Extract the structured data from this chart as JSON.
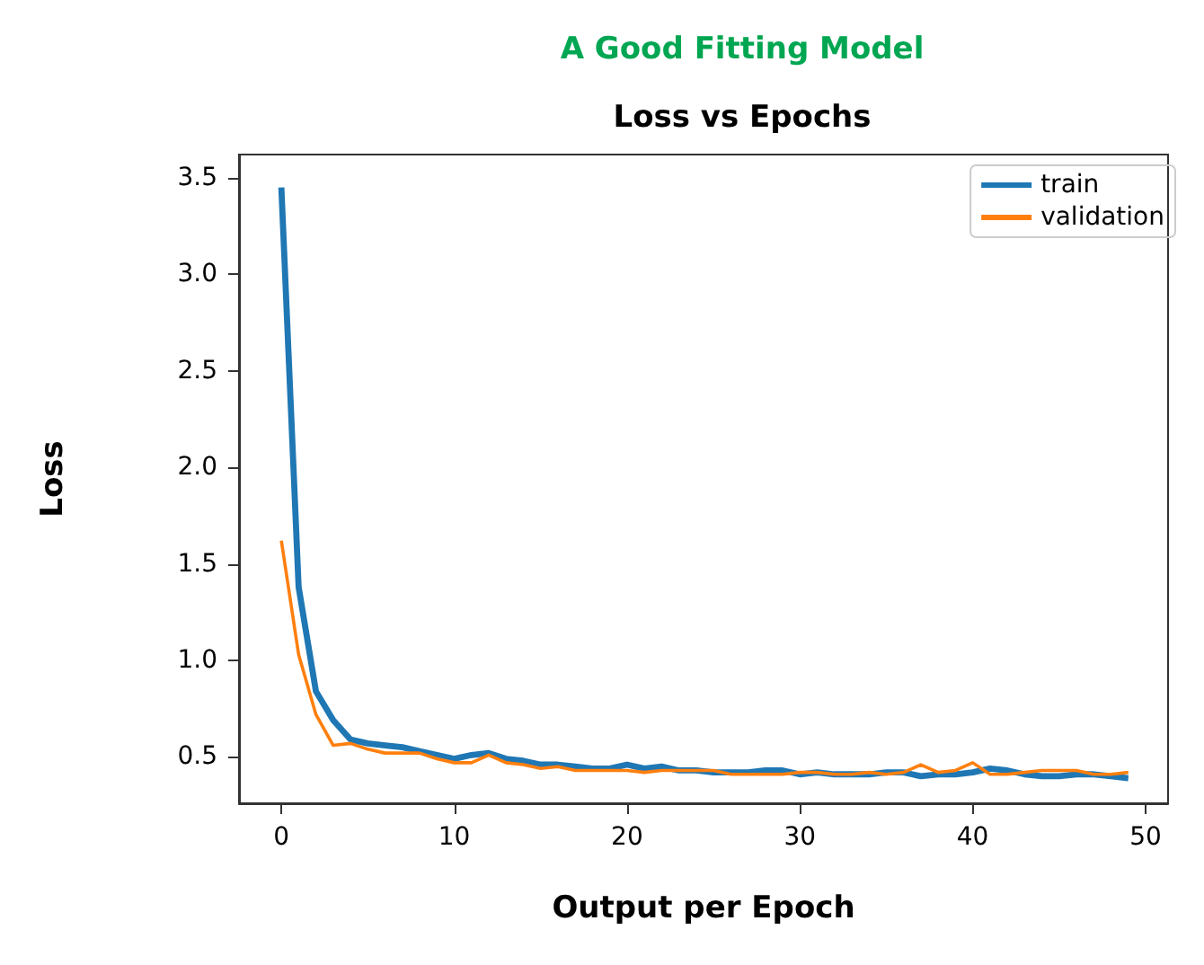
{
  "chart_data": {
    "type": "line",
    "title": "A Good Fitting Model",
    "subtitle": "Loss vs Epochs",
    "xlabel": "Output per Epoch",
    "ylabel": "Loss",
    "x": [
      0,
      1,
      2,
      3,
      4,
      5,
      6,
      7,
      8,
      9,
      10,
      11,
      12,
      13,
      14,
      15,
      16,
      17,
      18,
      19,
      20,
      21,
      22,
      23,
      24,
      25,
      26,
      27,
      28,
      29,
      30,
      31,
      32,
      33,
      34,
      35,
      36,
      37,
      38,
      39,
      40,
      41,
      42,
      43,
      44,
      45,
      46,
      47,
      48,
      49
    ],
    "series": [
      {
        "name": "train",
        "color": "#1f77b4",
        "values": [
          3.45,
          1.38,
          0.84,
          0.69,
          0.59,
          0.57,
          0.56,
          0.55,
          0.53,
          0.51,
          0.49,
          0.51,
          0.52,
          0.49,
          0.48,
          0.46,
          0.46,
          0.45,
          0.44,
          0.44,
          0.46,
          0.44,
          0.45,
          0.43,
          0.43,
          0.42,
          0.42,
          0.42,
          0.43,
          0.43,
          0.41,
          0.42,
          0.41,
          0.41,
          0.41,
          0.42,
          0.42,
          0.4,
          0.41,
          0.41,
          0.42,
          0.44,
          0.43,
          0.41,
          0.4,
          0.4,
          0.41,
          0.41,
          0.4,
          0.39
        ]
      },
      {
        "name": "validation",
        "color": "#ff7f0e",
        "values": [
          1.62,
          1.03,
          0.72,
          0.56,
          0.57,
          0.54,
          0.52,
          0.52,
          0.52,
          0.49,
          0.47,
          0.47,
          0.51,
          0.47,
          0.46,
          0.44,
          0.45,
          0.43,
          0.43,
          0.43,
          0.43,
          0.42,
          0.43,
          0.43,
          0.43,
          0.43,
          0.41,
          0.41,
          0.41,
          0.41,
          0.42,
          0.42,
          0.41,
          0.41,
          0.42,
          0.41,
          0.42,
          0.46,
          0.42,
          0.43,
          0.47,
          0.41,
          0.41,
          0.42,
          0.43,
          0.43,
          0.43,
          0.41,
          0.41,
          0.42
        ]
      }
    ],
    "xlim": [
      -2.45,
      51.3
    ],
    "xticks": [
      0,
      10,
      20,
      30,
      40,
      50
    ],
    "ylim": [
      0.26,
      3.62
    ],
    "yticks": [
      0.5,
      {
        "value": 1,
        "label": "1.0"
      },
      1.5,
      {
        "value": 2,
        "label": "2.0"
      },
      2.5,
      {
        "value": 3,
        "label": "3.0"
      },
      3.5
    ],
    "legend": "top right",
    "grid": false,
    "marker": "none",
    "line_style": "solid"
  }
}
